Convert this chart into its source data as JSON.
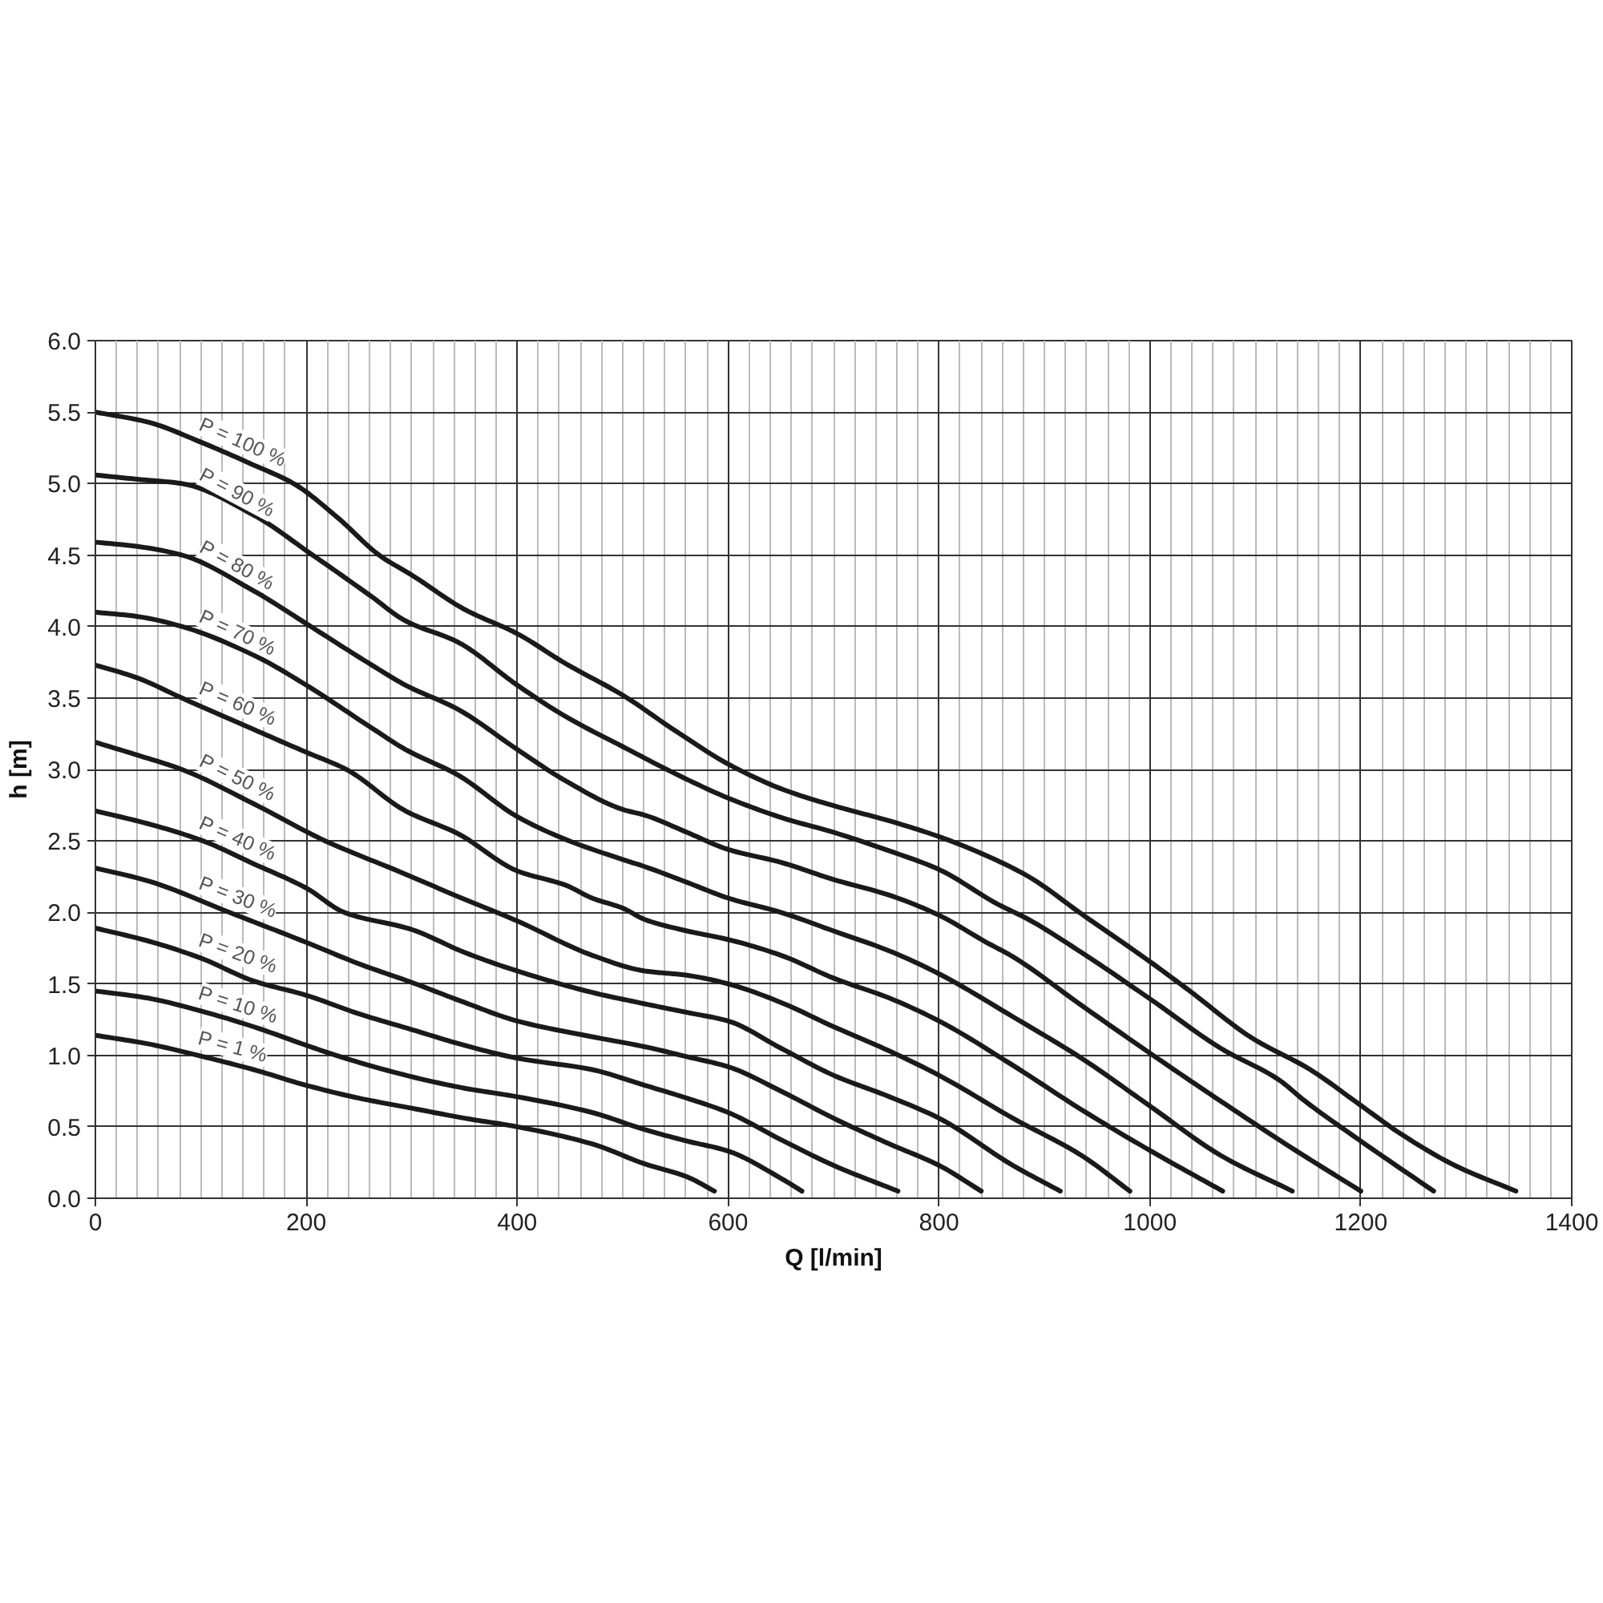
{
  "chart_data": {
    "type": "line",
    "xlabel": "Q [l/min]",
    "ylabel": "h [m]",
    "xlim": [
      0,
      1400
    ],
    "xticks": [
      0,
      200,
      400,
      600,
      800,
      1000,
      1200,
      1400
    ],
    "ylim": [
      0,
      6
    ],
    "yticks": [
      {
        "value": 0,
        "label": "0.0"
      },
      0.5,
      {
        "value": 1,
        "label": "1.0"
      },
      1.5,
      {
        "value": 2,
        "label": "2.0"
      },
      2.5,
      {
        "value": 3,
        "label": "3.0"
      },
      3.5,
      {
        "value": 4,
        "label": "4.0"
      },
      4.5,
      {
        "value": 5,
        "label": "5.0"
      },
      5.5,
      {
        "value": 6,
        "label": "6.0"
      }
    ],
    "grid": true,
    "line_style": "solid",
    "series": [
      {
        "name": "P = 100 %",
        "color": "#1a1a1a",
        "x": [
          0,
          50,
          100,
          150,
          188,
          230,
          269,
          300,
          350,
          400,
          446,
          500,
          550,
          602,
          652,
          703,
          753,
          800,
          844,
          885,
          935,
          1001,
          1036,
          1097,
          1152,
          1198,
          1238,
          1289,
          1347
        ],
        "values": [
          5.5,
          5.43,
          5.29,
          5.13,
          5.0,
          4.76,
          4.5,
          4.36,
          4.12,
          3.95,
          3.74,
          3.52,
          3.27,
          3.03,
          2.86,
          2.74,
          2.64,
          2.53,
          2.4,
          2.25,
          1.99,
          1.65,
          1.46,
          1.12,
          0.9,
          0.66,
          0.45,
          0.23,
          0.05
        ]
      },
      {
        "name": "P = 90 %",
        "color": "#1a1a1a",
        "x": [
          0,
          40,
          82,
          150,
          206,
          260,
          294,
          344,
          400,
          446,
          500,
          550,
          600,
          652,
          700,
          753,
          800,
          855,
          885,
          935,
          1001,
          1067,
          1122,
          1147,
          1198,
          1269
        ],
        "values": [
          5.06,
          5.03,
          5.0,
          4.78,
          4.5,
          4.22,
          4.04,
          3.89,
          3.59,
          3.37,
          3.16,
          2.97,
          2.8,
          2.66,
          2.56,
          2.43,
          2.3,
          2.06,
          1.95,
          1.72,
          1.39,
          1.05,
          0.83,
          0.68,
          0.41,
          0.05
        ]
      },
      {
        "name": "P = 80 %",
        "color": "#1a1a1a",
        "x": [
          0,
          40,
          82,
          150,
          200,
          260,
          294,
          344,
          400,
          446,
          500,
          521,
          561,
          600,
          650,
          700,
          753,
          800,
          845,
          870,
          935,
          1001,
          1067,
          1137,
          1200
        ],
        "values": [
          4.59,
          4.56,
          4.5,
          4.25,
          4.02,
          3.74,
          3.59,
          3.42,
          3.14,
          2.92,
          2.72,
          2.68,
          2.56,
          2.44,
          2.35,
          2.23,
          2.12,
          1.98,
          1.79,
          1.69,
          1.35,
          1.01,
          0.68,
          0.34,
          0.05
        ]
      },
      {
        "name": "P = 70 %",
        "color": "#1a1a1a",
        "x": [
          0,
          40,
          82,
          150,
          200,
          260,
          294,
          344,
          400,
          446,
          500,
          521,
          561,
          600,
          650,
          700,
          753,
          800,
          870,
          935,
          1001,
          1067,
          1135
        ],
        "values": [
          4.1,
          4.07,
          4.0,
          3.8,
          3.59,
          3.3,
          3.14,
          2.96,
          2.67,
          2.51,
          2.37,
          2.32,
          2.21,
          2.1,
          2.0,
          1.87,
          1.73,
          1.57,
          1.27,
          0.98,
          0.64,
          0.3,
          0.05
        ]
      },
      {
        "name": "P = 60 %",
        "color": "#1a1a1a",
        "x": [
          0,
          40,
          82,
          150,
          200,
          238,
          294,
          344,
          400,
          446,
          471,
          500,
          521,
          561,
          600,
          650,
          700,
          753,
          800,
          870,
          935,
          1001,
          1069
        ],
        "values": [
          3.73,
          3.64,
          3.5,
          3.28,
          3.12,
          3.0,
          2.71,
          2.55,
          2.29,
          2.19,
          2.1,
          2.03,
          1.95,
          1.87,
          1.81,
          1.7,
          1.54,
          1.4,
          1.24,
          0.93,
          0.62,
          0.33,
          0.05
        ]
      },
      {
        "name": "P = 50 %",
        "color": "#1a1a1a",
        "x": [
          0,
          40,
          82,
          150,
          218,
          290,
          344,
          400,
          471,
          521,
          561,
          600,
          650,
          700,
          753,
          800,
          870,
          935,
          981
        ],
        "values": [
          3.19,
          3.1,
          3.0,
          2.76,
          2.5,
          2.28,
          2.11,
          1.94,
          1.7,
          1.59,
          1.56,
          1.5,
          1.37,
          1.2,
          1.03,
          0.86,
          0.56,
          0.3,
          0.05
        ]
      },
      {
        "name": "P = 40 %",
        "color": "#1a1a1a",
        "x": [
          0,
          50,
          102,
          150,
          200,
          236,
          300,
          350,
          400,
          471,
          521,
          561,
          600,
          650,
          700,
          753,
          800,
          870,
          915
        ],
        "values": [
          2.71,
          2.62,
          2.5,
          2.34,
          2.17,
          2.0,
          1.88,
          1.72,
          1.59,
          1.44,
          1.36,
          1.3,
          1.24,
          1.05,
          0.86,
          0.71,
          0.56,
          0.23,
          0.05
        ]
      },
      {
        "name": "P = 30 %",
        "color": "#1a1a1a",
        "x": [
          0,
          50,
          127,
          200,
          250,
          300,
          350,
          400,
          471,
          521,
          561,
          600,
          650,
          700,
          753,
          800,
          840
        ],
        "values": [
          2.31,
          2.22,
          2.0,
          1.79,
          1.64,
          1.51,
          1.37,
          1.24,
          1.13,
          1.06,
          0.99,
          0.92,
          0.75,
          0.56,
          0.38,
          0.23,
          0.05
        ]
      },
      {
        "name": "P = 20 %",
        "color": "#1a1a1a",
        "x": [
          0,
          50,
          100,
          150,
          200,
          250,
          300,
          350,
          400,
          471,
          521,
          561,
          600,
          650,
          700,
          761
        ],
        "values": [
          1.89,
          1.8,
          1.68,
          1.52,
          1.42,
          1.29,
          1.18,
          1.07,
          0.98,
          0.9,
          0.79,
          0.7,
          0.6,
          0.41,
          0.23,
          0.05
        ]
      },
      {
        "name": "P = 10 %",
        "color": "#1a1a1a",
        "x": [
          0,
          50,
          100,
          150,
          200,
          228,
          300,
          350,
          400,
          471,
          521,
          561,
          600,
          650,
          670
        ],
        "values": [
          1.45,
          1.4,
          1.31,
          1.2,
          1.07,
          1.0,
          0.85,
          0.77,
          0.71,
          0.6,
          0.48,
          0.4,
          0.33,
          0.14,
          0.05
        ]
      },
      {
        "name": "P = 1 %",
        "color": "#1a1a1a",
        "x": [
          0,
          50,
          97,
          150,
          200,
          250,
          300,
          350,
          400,
          471,
          521,
          561,
          587
        ],
        "values": [
          1.14,
          1.08,
          1.0,
          0.9,
          0.79,
          0.7,
          0.63,
          0.56,
          0.5,
          0.38,
          0.24,
          0.15,
          0.05
        ]
      }
    ]
  }
}
